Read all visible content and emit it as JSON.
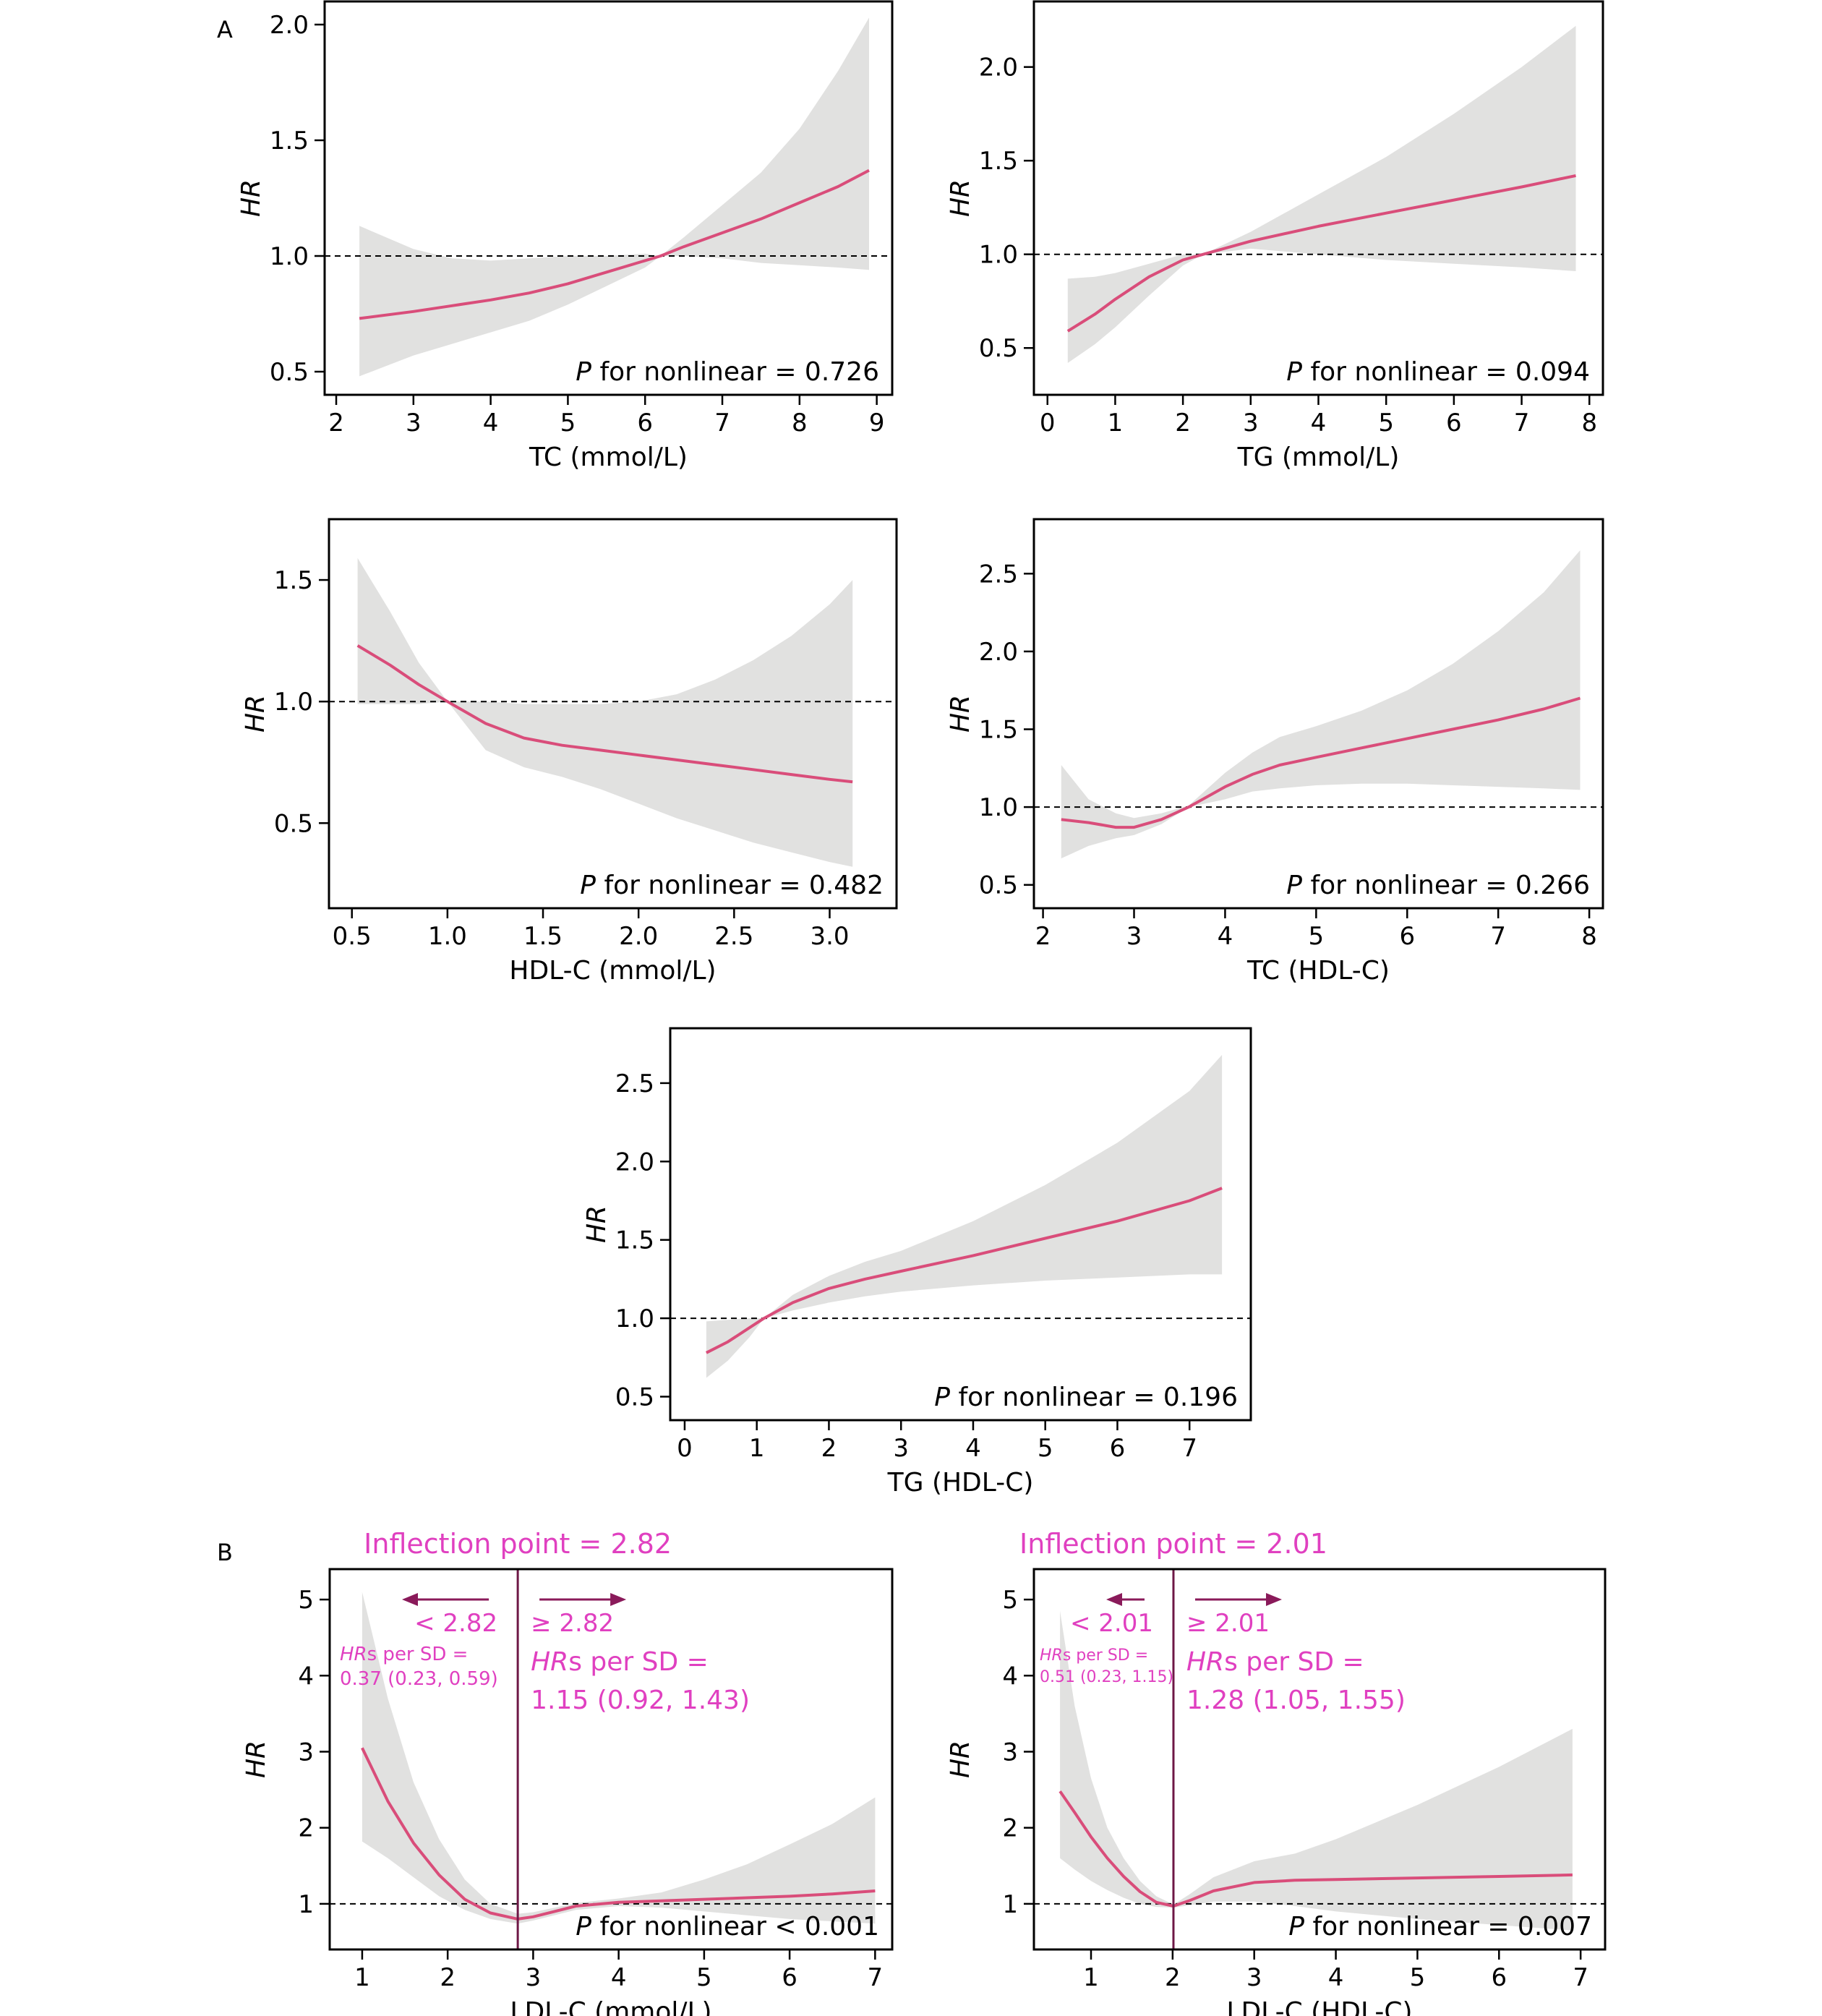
{
  "figure": {
    "panel_labels": [
      "A",
      "B"
    ],
    "colors": {
      "curve": "#d94d7a",
      "ci_band": "#e1e1e0",
      "reference_line": "#000000",
      "annotation": "#e040c0",
      "arrow": "#8a1a5a",
      "inflection_line": "#6e1846"
    }
  },
  "chart_data": [
    {
      "type": "area",
      "panel": "A",
      "xlabel": "TC (mmol/L)",
      "ylabel": "HR",
      "p_label_italic": "P",
      "p_label_rest": " for nonlinear = 0.726",
      "xlim": [
        1.85,
        9.2
      ],
      "ylim": [
        0.4,
        2.1
      ],
      "xticks": [
        2,
        3,
        4,
        5,
        6,
        7,
        8,
        9
      ],
      "xtick_labels": [
        "2",
        "3",
        "4",
        "5",
        "6",
        "7",
        "8",
        "9"
      ],
      "yticks": [
        0.5,
        1.0,
        1.5,
        2.0
      ],
      "ytick_labels": [
        "0.5",
        "1.0",
        "1.5",
        "2.0"
      ],
      "reference_y": 1.0,
      "x": [
        2.3,
        3,
        3.5,
        4,
        4.5,
        5,
        5.5,
        6,
        6.2,
        6.5,
        7,
        7.5,
        8,
        8.5,
        8.9
      ],
      "hr": [
        0.73,
        0.76,
        0.785,
        0.81,
        0.84,
        0.88,
        0.93,
        0.98,
        1.0,
        1.04,
        1.1,
        1.16,
        1.23,
        1.3,
        1.37
      ],
      "lower": [
        0.48,
        0.57,
        0.62,
        0.67,
        0.72,
        0.79,
        0.87,
        0.95,
        1.0,
        1.0,
        0.99,
        0.97,
        0.96,
        0.95,
        0.94
      ],
      "upper": [
        1.13,
        1.03,
        0.99,
        0.98,
        0.99,
        1.0,
        1.0,
        1.01,
        1.0,
        1.08,
        1.22,
        1.36,
        1.55,
        1.8,
        2.03
      ]
    },
    {
      "type": "area",
      "panel": "A",
      "xlabel": "TG (mmol/L)",
      "ylabel": "HR",
      "p_label_italic": "P",
      "p_label_rest": " for nonlinear = 0.094",
      "xlim": [
        -0.2,
        8.2
      ],
      "ylim": [
        0.25,
        2.35
      ],
      "xticks": [
        0,
        1,
        2,
        3,
        4,
        5,
        6,
        7,
        8
      ],
      "xtick_labels": [
        "0",
        "1",
        "2",
        "3",
        "4",
        "5",
        "6",
        "7",
        "8"
      ],
      "yticks": [
        0.5,
        1.0,
        1.5,
        2.0
      ],
      "ytick_labels": [
        "0.5",
        "1.0",
        "1.5",
        "2.0"
      ],
      "reference_y": 1.0,
      "x": [
        0.3,
        0.7,
        1.0,
        1.5,
        2.0,
        2.3,
        3.0,
        4.0,
        5.0,
        6.0,
        7.0,
        7.8
      ],
      "hr": [
        0.59,
        0.68,
        0.76,
        0.88,
        0.97,
        1.0,
        1.07,
        1.15,
        1.22,
        1.29,
        1.36,
        1.42
      ],
      "lower": [
        0.42,
        0.52,
        0.61,
        0.78,
        0.94,
        1.0,
        1.03,
        1.0,
        0.97,
        0.95,
        0.93,
        0.91
      ],
      "upper": [
        0.87,
        0.88,
        0.9,
        0.95,
        1.0,
        1.0,
        1.12,
        1.32,
        1.52,
        1.75,
        2.0,
        2.22
      ]
    },
    {
      "type": "area",
      "panel": "A",
      "xlabel": "HDL-C (mmol/L)",
      "ylabel": "HR",
      "p_label_italic": "P",
      "p_label_rest": " for nonlinear = 0.482",
      "xlim": [
        0.38,
        3.35
      ],
      "ylim": [
        0.15,
        1.75
      ],
      "xticks": [
        0.5,
        1.0,
        1.5,
        2.0,
        2.5,
        3.0
      ],
      "xtick_labels": [
        "0.5",
        "1.0",
        "1.5",
        "2.0",
        "2.5",
        "3.0"
      ],
      "yticks": [
        0.5,
        1.0,
        1.5
      ],
      "ytick_labels": [
        "0.5",
        "1.0",
        "1.5"
      ],
      "reference_y": 1.0,
      "x": [
        0.53,
        0.7,
        0.85,
        1.0,
        1.2,
        1.4,
        1.6,
        1.8,
        2.0,
        2.2,
        2.4,
        2.6,
        2.8,
        3.0,
        3.12
      ],
      "hr": [
        1.23,
        1.15,
        1.07,
        1.0,
        0.91,
        0.85,
        0.82,
        0.8,
        0.78,
        0.76,
        0.74,
        0.72,
        0.7,
        0.68,
        0.67
      ],
      "lower": [
        0.99,
        0.99,
        0.99,
        1.0,
        0.8,
        0.73,
        0.69,
        0.64,
        0.58,
        0.52,
        0.47,
        0.42,
        0.38,
        0.34,
        0.32
      ],
      "upper": [
        1.59,
        1.37,
        1.16,
        1.0,
        1.0,
        0.99,
        0.99,
        0.99,
        1.0,
        1.03,
        1.09,
        1.17,
        1.27,
        1.4,
        1.5
      ]
    },
    {
      "type": "area",
      "panel": "A",
      "xlabel": "TC (HDL-C)",
      "ylabel": "HR",
      "p_label_italic": "P",
      "p_label_rest": " for nonlinear = 0.266",
      "xlim": [
        1.9,
        8.15
      ],
      "ylim": [
        0.35,
        2.85
      ],
      "xticks": [
        2,
        3,
        4,
        5,
        6,
        7,
        8
      ],
      "xtick_labels": [
        "2",
        "3",
        "4",
        "5",
        "6",
        "7",
        "8"
      ],
      "yticks": [
        0.5,
        1.0,
        1.5,
        2.0,
        2.5
      ],
      "ytick_labels": [
        "0.5",
        "1.0",
        "1.5",
        "2.0",
        "2.5"
      ],
      "reference_y": 1.0,
      "x": [
        2.2,
        2.5,
        2.8,
        3.0,
        3.3,
        3.6,
        4.0,
        4.3,
        4.6,
        5.0,
        5.5,
        6.0,
        6.5,
        7.0,
        7.5,
        7.9
      ],
      "hr": [
        0.92,
        0.9,
        0.87,
        0.87,
        0.92,
        1.0,
        1.13,
        1.21,
        1.27,
        1.32,
        1.38,
        1.44,
        1.5,
        1.56,
        1.63,
        1.7
      ],
      "lower": [
        0.67,
        0.75,
        0.8,
        0.82,
        0.89,
        1.0,
        1.05,
        1.1,
        1.12,
        1.14,
        1.15,
        1.15,
        1.14,
        1.13,
        1.12,
        1.11
      ],
      "upper": [
        1.27,
        1.05,
        0.96,
        0.93,
        0.96,
        1.01,
        1.22,
        1.35,
        1.45,
        1.52,
        1.62,
        1.75,
        1.92,
        2.13,
        2.38,
        2.65
      ]
    },
    {
      "type": "area",
      "panel": "A",
      "xlabel": "TG (HDL-C)",
      "ylabel": "HR",
      "p_label_italic": "P",
      "p_label_rest": " for nonlinear = 0.196",
      "xlim": [
        -0.2,
        7.85
      ],
      "ylim": [
        0.35,
        2.85
      ],
      "xticks": [
        0,
        1,
        2,
        3,
        4,
        5,
        6,
        7
      ],
      "xtick_labels": [
        "0",
        "1",
        "2",
        "3",
        "4",
        "5",
        "6",
        "7"
      ],
      "yticks": [
        0.5,
        1.0,
        1.5,
        2.0,
        2.5
      ],
      "ytick_labels": [
        "0.5",
        "1.0",
        "1.5",
        "2.0",
        "2.5"
      ],
      "reference_y": 1.0,
      "x": [
        0.3,
        0.6,
        0.9,
        1.1,
        1.5,
        2.0,
        2.5,
        3.0,
        4.0,
        5.0,
        6.0,
        7.0,
        7.45
      ],
      "hr": [
        0.78,
        0.85,
        0.94,
        1.0,
        1.1,
        1.19,
        1.25,
        1.3,
        1.4,
        1.51,
        1.62,
        1.75,
        1.83
      ],
      "lower": [
        0.62,
        0.73,
        0.88,
        1.0,
        1.05,
        1.1,
        1.14,
        1.17,
        1.21,
        1.24,
        1.26,
        1.28,
        1.28
      ],
      "upper": [
        0.98,
        0.99,
        1.0,
        1.0,
        1.15,
        1.27,
        1.36,
        1.43,
        1.62,
        1.85,
        2.12,
        2.45,
        2.68
      ]
    },
    {
      "type": "area",
      "panel": "B",
      "xlabel": "LDL-C (mmol/L)",
      "ylabel": "HR",
      "p_label_italic": "P",
      "p_label_rest": " for nonlinear < 0.001",
      "xlim": [
        0.62,
        7.2
      ],
      "ylim": [
        0.4,
        5.4
      ],
      "xticks": [
        1,
        2,
        3,
        4,
        5,
        6,
        7
      ],
      "xtick_labels": [
        "1",
        "2",
        "3",
        "4",
        "5",
        "6",
        "7"
      ],
      "yticks": [
        1,
        2,
        3,
        4,
        5
      ],
      "ytick_labels": [
        "1",
        "2",
        "3",
        "4",
        "5"
      ],
      "reference_y": 1,
      "x": [
        1.0,
        1.3,
        1.6,
        1.9,
        2.2,
        2.5,
        2.82,
        3.0,
        3.5,
        4.0,
        4.5,
        5.0,
        5.5,
        6.0,
        6.5,
        7.0
      ],
      "hr": [
        3.05,
        2.35,
        1.8,
        1.38,
        1.06,
        0.88,
        0.8,
        0.83,
        0.97,
        1.02,
        1.04,
        1.06,
        1.08,
        1.1,
        1.13,
        1.17
      ],
      "lower": [
        1.82,
        1.6,
        1.35,
        1.1,
        0.92,
        0.8,
        0.74,
        0.78,
        0.92,
        0.97,
        0.95,
        0.9,
        0.85,
        0.8,
        0.77,
        0.74
      ],
      "upper": [
        5.1,
        3.7,
        2.6,
        1.85,
        1.32,
        1.0,
        0.87,
        0.89,
        1.01,
        1.07,
        1.15,
        1.32,
        1.52,
        1.78,
        2.05,
        2.4
      ],
      "inflection_x": 2.82,
      "inflection_title": "Inflection point = 2.82",
      "left_segment_label": "< 2.82",
      "right_segment_label": "≥ 2.82",
      "left_hr_italic": "HR",
      "left_hr_rest": "s per SD =",
      "left_hr_value": "0.37 (0.23, 0.59)",
      "right_hr_italic": "HR",
      "right_hr_rest": "s per SD =",
      "right_hr_value": "1.15 (0.92, 1.43)"
    },
    {
      "type": "area",
      "panel": "B",
      "xlabel": "LDL-C (HDL-C)",
      "ylabel": "HR",
      "p_label_italic": "P",
      "p_label_rest": " for nonlinear = 0.007",
      "xlim": [
        0.3,
        7.3
      ],
      "ylim": [
        0.4,
        5.4
      ],
      "xticks": [
        1,
        2,
        3,
        4,
        5,
        6,
        7
      ],
      "xtick_labels": [
        "1",
        "2",
        "3",
        "4",
        "5",
        "6",
        "7"
      ],
      "yticks": [
        1,
        2,
        3,
        4,
        5
      ],
      "ytick_labels": [
        "1",
        "2",
        "3",
        "4",
        "5"
      ],
      "reference_y": 1,
      "x": [
        0.62,
        0.8,
        1.0,
        1.2,
        1.4,
        1.6,
        1.8,
        2.01,
        2.2,
        2.5,
        3.0,
        3.5,
        4.0,
        5.0,
        6.0,
        6.9
      ],
      "hr": [
        2.48,
        2.2,
        1.88,
        1.6,
        1.36,
        1.16,
        1.02,
        0.97,
        1.04,
        1.17,
        1.28,
        1.31,
        1.32,
        1.34,
        1.36,
        1.38
      ],
      "lower": [
        1.6,
        1.45,
        1.3,
        1.18,
        1.08,
        1.0,
        0.96,
        0.95,
        0.98,
        1.03,
        1.03,
        0.97,
        0.9,
        0.8,
        0.72,
        0.65
      ],
      "upper": [
        4.85,
        3.6,
        2.65,
        2.0,
        1.6,
        1.3,
        1.1,
        0.99,
        1.12,
        1.35,
        1.56,
        1.66,
        1.85,
        2.3,
        2.8,
        3.3
      ],
      "inflection_x": 2.01,
      "inflection_title": "Inflection point = 2.01",
      "left_segment_label": "< 2.01",
      "right_segment_label": "≥ 2.01",
      "left_hr_italic": "HR",
      "left_hr_rest": "s per SD =",
      "left_hr_value": "0.51 (0.23, 1.15)",
      "right_hr_italic": "HR",
      "right_hr_rest": "s per SD =",
      "right_hr_value": "1.28 (1.05, 1.55)"
    }
  ]
}
